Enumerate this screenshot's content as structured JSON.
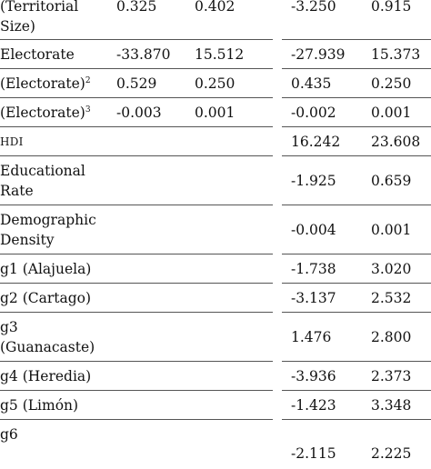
{
  "table": {
    "rows": [
      {
        "label": "(Territorial Size)",
        "m1_coef": "0.325",
        "m1_se": "0.402",
        "m2_coef": "-3.250",
        "m2_se": "0.915"
      },
      {
        "label": "Electorate",
        "m1_coef": "-33.870",
        "m1_se": "15.512",
        "m2_coef": "-27.939",
        "m2_se": "15.373"
      },
      {
        "label": "(Electorate)",
        "sup": "2",
        "m1_coef": "0.529",
        "m1_se": "0.250",
        "m2_coef": "0.435",
        "m2_se": "0.250"
      },
      {
        "label": "(Electorate)",
        "sup": "3",
        "m1_coef": "-0.003",
        "m1_se": "0.001",
        "m2_coef": "-0.002",
        "m2_se": "0.001"
      },
      {
        "label": "HDI",
        "m1_coef": "",
        "m1_se": "",
        "m2_coef": "16.242",
        "m2_se": "23.608"
      },
      {
        "label": "Educational Rate",
        "m1_coef": "",
        "m1_se": "",
        "m2_coef": "-1.925",
        "m2_se": "0.659"
      },
      {
        "label": "Demographic Density",
        "m1_coef": "",
        "m1_se": "",
        "m2_coef": "-0.004",
        "m2_se": "0.001"
      },
      {
        "label": "g1 (Alajuela)",
        "m1_coef": "",
        "m1_se": "",
        "m2_coef": "-1.738",
        "m2_se": "3.020"
      },
      {
        "label": "g2 (Cartago)",
        "m1_coef": "",
        "m1_se": "",
        "m2_coef": "-3.137",
        "m2_se": "2.532"
      },
      {
        "label": "g3 (Guanacaste)",
        "m1_coef": "",
        "m1_se": "",
        "m2_coef": "1.476",
        "m2_se": "2.800"
      },
      {
        "label": "g4 (Heredia)",
        "m1_coef": "",
        "m1_se": "",
        "m2_coef": "-3.936",
        "m2_se": "2.373"
      },
      {
        "label": "g5 (Limón)",
        "m1_coef": "",
        "m1_se": "",
        "m2_coef": "-1.423",
        "m2_se": "3.348"
      },
      {
        "label": "g6",
        "m1_coef": "",
        "m1_se": "",
        "m2_coef": "-2.115",
        "m2_se": "2.225"
      }
    ]
  }
}
